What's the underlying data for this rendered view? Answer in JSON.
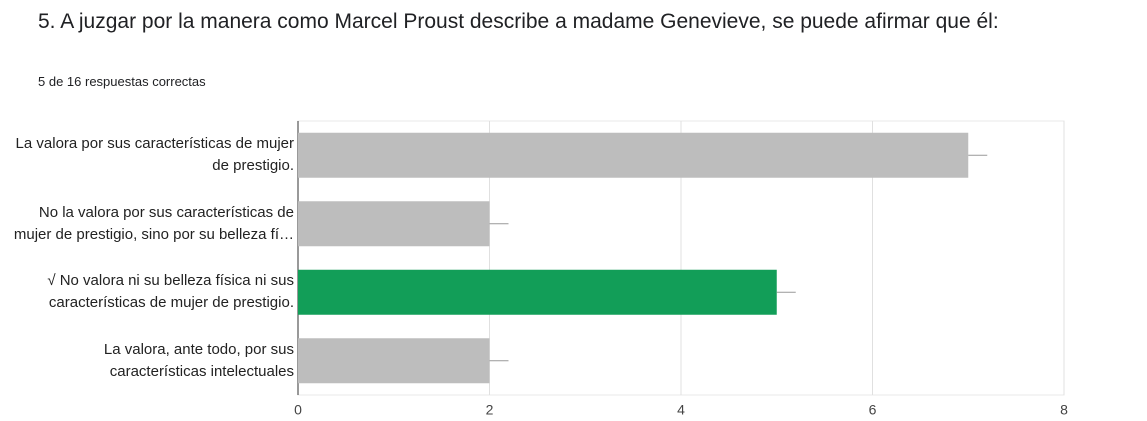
{
  "chart_data": {
    "type": "bar",
    "orientation": "horizontal",
    "title": "5. A juzgar por la manera como Marcel Proust describe a madame Genevieve, se puede afirmar que él:",
    "subtitle": "5 de 16 respuestas correctas",
    "categories": [
      "La valora por sus características de mujer de prestigio.",
      "No la valora por sus características de mujer de prestigio, sino por su belleza fí…",
      "√ No valora ni su belleza física ni sus características de mujer de prestigio.",
      "La valora, ante todo, por sus características intelectuales"
    ],
    "values": [
      7,
      2,
      5,
      2
    ],
    "colors": [
      "#bdbdbd",
      "#bdbdbd",
      "#129e58",
      "#bdbdbd"
    ],
    "xlim": [
      0,
      8
    ],
    "xticks": [
      0,
      2,
      4,
      6,
      8
    ],
    "grid": true
  }
}
